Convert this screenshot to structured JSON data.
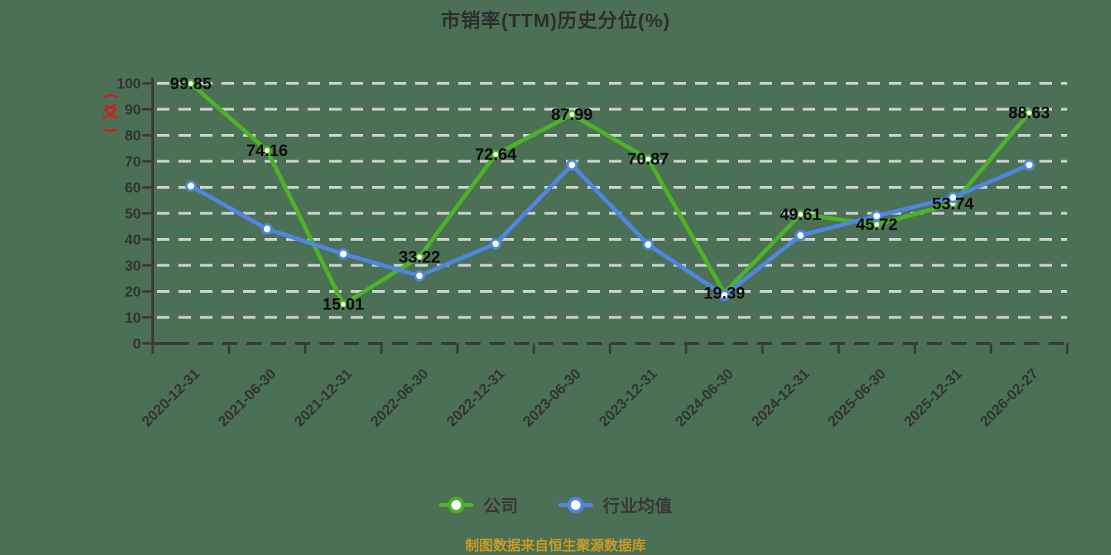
{
  "chart": {
    "title": "市销率(TTM)历史分位(%)",
    "watermark_glyph": "爻",
    "footer": "制图数据来自恒生聚源数据库"
  },
  "colors": {
    "background": "#4b7055",
    "gridline": "#cfcfcf",
    "axis": "#3a3a3a",
    "company_green": "#4cb227",
    "industry_blue": "#4e86e0",
    "point_fill": "#ffffff",
    "data_label": "#0d0d0d",
    "footer_text": "#c89b25",
    "watermark_red": "#e01515"
  },
  "chart_data": {
    "type": "line",
    "title": "市销率(TTM)历史分位(%)",
    "categories": [
      "2020-12-31",
      "2021-06-30",
      "2021-12-31",
      "2022-06-30",
      "2022-12-31",
      "2023-06-30",
      "2023-12-31",
      "2024-06-30",
      "2024-12-31",
      "2025-06-30",
      "2025-12-31",
      "2026-02-27"
    ],
    "series": [
      {
        "name": "公司",
        "color": "#4cb227",
        "values": [
          99.85,
          74.16,
          15.01,
          33.22,
          72.64,
          87.99,
          70.87,
          19.39,
          49.61,
          45.72,
          53.74,
          88.63
        ],
        "point_labels": [
          "99.85",
          "74.16",
          "15.01",
          "33.22",
          "72.64",
          "87.99",
          "70.87",
          "19.39",
          "49.61",
          "45.72",
          "53.74",
          "88.63"
        ],
        "labeled": true
      },
      {
        "name": "行业均值",
        "color": "#4e86e0",
        "values": [
          60.5,
          44.0,
          34.4,
          26.0,
          38.3,
          68.6,
          38.0,
          18.5,
          41.5,
          49.0,
          56.1,
          68.6
        ],
        "labeled": false
      }
    ],
    "xlabel": "",
    "ylabel": "",
    "ylim": [
      0,
      100
    ],
    "ytick_step": 10,
    "grid": "horizontal-dashed",
    "legend_position": "bottom",
    "x_label_rotation_deg": 45
  }
}
